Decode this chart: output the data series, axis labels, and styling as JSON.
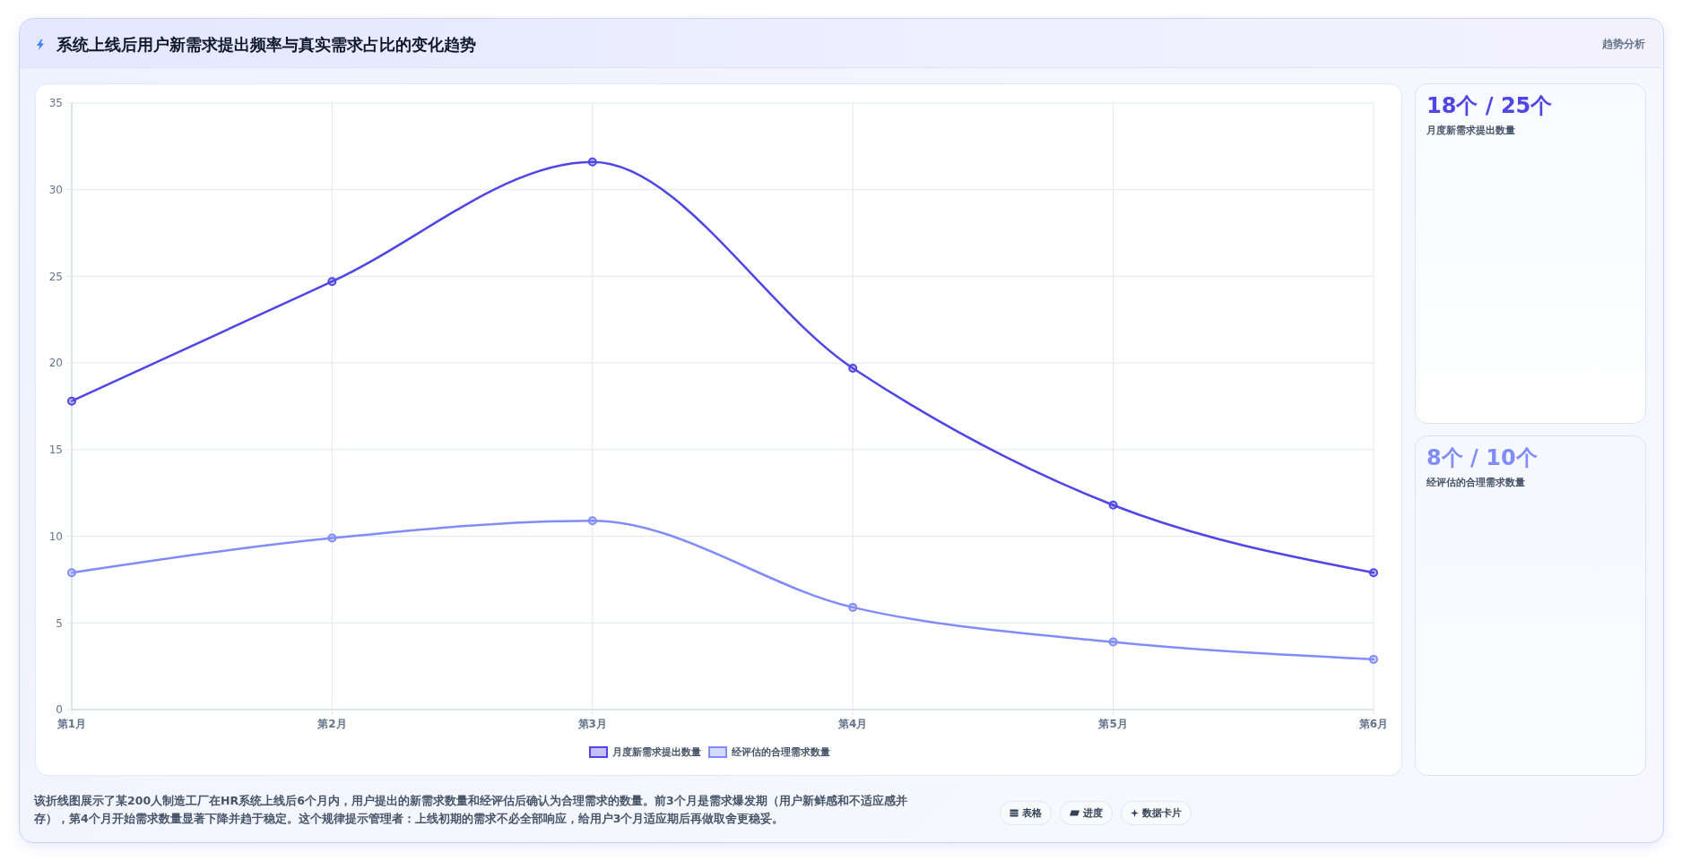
{
  "chart_data": {
    "type": "line",
    "title": "系统上线后用户新需求提出频率与真实需求占比的变化趋势",
    "categories": [
      "第1月",
      "第2月",
      "第3月",
      "第4月",
      "第5月",
      "第6月"
    ],
    "series": [
      {
        "name": "月度新需求提出数量",
        "color": "#4f46e5",
        "values": [
          17.8,
          24.7,
          31.6,
          19.7,
          11.8,
          7.9
        ]
      },
      {
        "name": "经评估的合理需求数量",
        "color": "#818cf8",
        "values": [
          7.9,
          9.9,
          10.9,
          5.9,
          3.9,
          2.9
        ]
      }
    ],
    "ylim": [
      0,
      35
    ],
    "yticks": [
      0,
      5,
      10,
      15,
      20,
      25,
      30,
      35
    ],
    "grid": true,
    "legend": "bottom",
    "marker": "circle",
    "line_style": "solid",
    "annotations": [
      "趋势分析",
      "18个 / 25个",
      "月度新需求提出数量",
      "8个 / 10个",
      "经评估的合理需求数量",
      "该折线图展示了某200人制造工厂在HR系统上线后6个月内，用户提出的新需求数量和经评估后确认为合理需求的数量。前3个月是需求爆发期（用户新鲜感和不适应感并存），第4个月开始需求数量显著下降并趋于稳定。这个规律提示管理者：上线初期的需求不必全部响应，给用户3个月适应期后再做取舍更稳妥。",
      "表格",
      "进度",
      "数据卡片"
    ]
  }
}
